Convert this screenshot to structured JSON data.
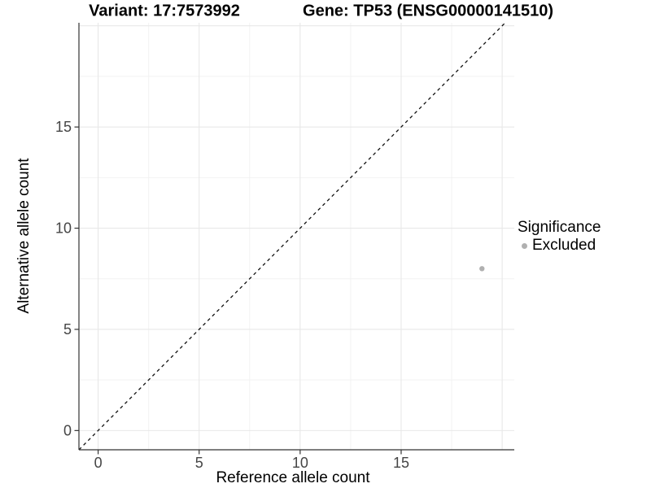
{
  "titles": {
    "variant": "Variant: 17:7573992",
    "gene": "Gene: TP53 (ENSG00000141510)"
  },
  "axes": {
    "x_label": "Reference allele count",
    "y_label": "Alternative allele count",
    "x_tick_labels": [
      "0",
      "5",
      "10",
      "15"
    ],
    "y_tick_labels": [
      "0",
      "5",
      "10",
      "15"
    ]
  },
  "legend": {
    "title": "Significance",
    "items": [
      {
        "label": "Excluded",
        "color": "#b0b0b0"
      }
    ]
  },
  "chart_data": {
    "type": "scatter",
    "title": "Variant: 17:7573992 — Gene: TP53 (ENSG00000141510)",
    "xlabel": "Reference allele count",
    "ylabel": "Alternative allele count",
    "points": [
      {
        "x": 19,
        "y": 8,
        "significance": "Excluded",
        "color": "#b0b0b0"
      }
    ],
    "reference_line": {
      "type": "identity",
      "slope": 1,
      "intercept": 0,
      "style": "dashed",
      "color": "#111111"
    },
    "xlim": [
      -0.95,
      20.6
    ],
    "ylim": [
      -0.95,
      20.15
    ],
    "major_breaks": [
      0,
      5,
      10,
      15,
      20
    ],
    "minor_breaks": [
      2.5,
      7.5,
      12.5,
      17.5
    ],
    "labeled_breaks": [
      0,
      5,
      10,
      15
    ],
    "grid": true,
    "legend_position": "right",
    "colors": {
      "grid_major": "#e8e8e8",
      "grid_minor": "#f2f2f2",
      "axis_line": "#333333",
      "tick_text": "#454545",
      "point": "#b0b0b0"
    }
  }
}
